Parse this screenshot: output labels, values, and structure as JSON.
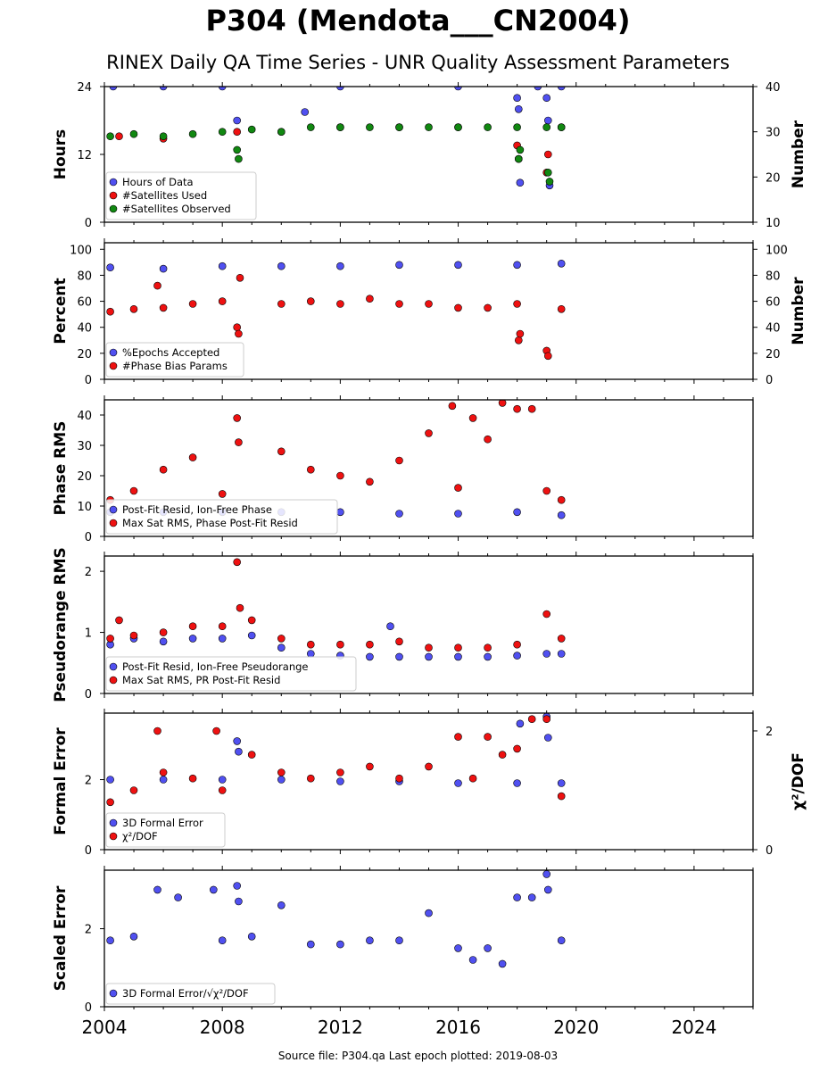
{
  "title": "P304 (Mendota___CN2004)",
  "subtitle": "RINEX Daily QA Time Series - UNR Quality Assessment Parameters",
  "source": "Source file: P304.qa Last epoch plotted: 2019-08-03",
  "colors": {
    "blue": "#5050f0",
    "red": "#ee1111",
    "green": "#118811"
  },
  "chart_data": [
    {
      "type": "scatter",
      "ylabel": "Hours",
      "y2label": "Number",
      "ylim": [
        0,
        24
      ],
      "yticks": [
        0,
        12,
        24
      ],
      "y2lim": [
        10,
        40
      ],
      "y2ticks": [
        10,
        20,
        30,
        40
      ],
      "xlim": [
        2004.0,
        2026.0
      ],
      "xticks": [
        2004,
        2008,
        2012,
        2016,
        2020,
        2024
      ],
      "legend": "lower-left",
      "series": [
        {
          "name": "Hours of Data",
          "color": "blue",
          "axis": "left",
          "x": [
            2004.3,
            2006,
            2008,
            2008.5,
            2010.8,
            2012,
            2016,
            2018,
            2018.05,
            2018.1,
            2018.7,
            2019,
            2019.05,
            2019.1,
            2019.5
          ],
          "y": [
            24,
            24,
            24,
            18,
            19.5,
            24,
            24,
            22,
            20,
            7,
            24,
            22,
            18,
            6.5,
            24
          ]
        },
        {
          "name": "#Satellites Used",
          "color": "red",
          "axis": "right",
          "x": [
            2004.5,
            2006,
            2008.5,
            2010,
            2012,
            2014,
            2016,
            2018,
            2018.05,
            2019,
            2019.05,
            2019.5
          ],
          "y": [
            29,
            28.5,
            30,
            30,
            31,
            31,
            31,
            27,
            24,
            21,
            25,
            31
          ]
        },
        {
          "name": "#Satellites Observed",
          "color": "green",
          "axis": "right",
          "x": [
            2004.2,
            2005,
            2006,
            2007,
            2008,
            2008.5,
            2008.55,
            2009,
            2010,
            2011,
            2012,
            2013,
            2014,
            2015,
            2016,
            2017,
            2018,
            2018.05,
            2018.1,
            2019,
            2019.05,
            2019.1,
            2019.5
          ],
          "y": [
            29,
            29.5,
            29,
            29.5,
            30,
            26,
            24,
            30.5,
            30,
            31,
            31,
            31,
            31,
            31,
            31,
            31,
            31,
            24,
            26,
            31,
            21,
            19,
            31
          ]
        }
      ]
    },
    {
      "type": "scatter",
      "ylabel": "Percent",
      "y2label": "Number",
      "ylim": [
        0,
        105
      ],
      "yticks": [
        0,
        20,
        40,
        60,
        80,
        100
      ],
      "y2lim": [
        0,
        105
      ],
      "y2ticks": [
        0,
        20,
        40,
        60,
        80,
        100
      ],
      "xlim": [
        2004.0,
        2026.0
      ],
      "xticks": [
        2004,
        2008,
        2012,
        2016,
        2020,
        2024
      ],
      "legend": "lower-left",
      "series": [
        {
          "name": "%Epochs Accepted",
          "color": "blue",
          "axis": "left",
          "x": [
            2004.2,
            2006,
            2008,
            2010,
            2012,
            2014,
            2016,
            2018,
            2019.5
          ],
          "y": [
            86,
            85,
            87,
            87,
            87,
            88,
            88,
            88,
            89
          ]
        },
        {
          "name": "#Phase Bias Params",
          "color": "red",
          "axis": "right",
          "x": [
            2004.2,
            2005,
            2005.8,
            2006,
            2007,
            2008,
            2008.5,
            2008.55,
            2008.6,
            2010,
            2011,
            2012,
            2013,
            2014,
            2015,
            2016,
            2017,
            2018,
            2018.05,
            2018.1,
            2019,
            2019.05,
            2019.5
          ],
          "y": [
            52,
            54,
            72,
            55,
            58,
            60,
            40,
            35,
            78,
            58,
            60,
            58,
            62,
            58,
            58,
            55,
            55,
            58,
            30,
            35,
            22,
            18,
            54
          ]
        }
      ]
    },
    {
      "type": "scatter",
      "ylabel": "Phase RMS",
      "ylim": [
        0,
        45
      ],
      "yticks": [
        0,
        10,
        20,
        30,
        40
      ],
      "xlim": [
        2004.0,
        2026.0
      ],
      "xticks": [
        2004,
        2008,
        2012,
        2016,
        2020,
        2024
      ],
      "legend": "lower-left",
      "series": [
        {
          "name": "Post-Fit Resid, Ion-Free Phase",
          "color": "blue",
          "axis": "left",
          "x": [
            2004.2,
            2006,
            2008,
            2010,
            2012,
            2014,
            2016,
            2018,
            2019.5
          ],
          "y": [
            8,
            8,
            8,
            8,
            8,
            7.5,
            7.5,
            8,
            7
          ]
        },
        {
          "name": "Max Sat RMS, Phase Post-Fit Resid",
          "color": "red",
          "axis": "left",
          "x": [
            2004.2,
            2005,
            2006,
            2007,
            2008,
            2008.5,
            2008.55,
            2010,
            2011,
            2012,
            2013,
            2014,
            2015,
            2015.8,
            2016,
            2016.5,
            2017,
            2017.5,
            2018,
            2018.5,
            2019,
            2019.5
          ],
          "y": [
            12,
            15,
            22,
            26,
            14,
            39,
            31,
            28,
            22,
            20,
            18,
            25,
            34,
            43,
            16,
            39,
            32,
            44,
            42,
            42,
            15,
            12
          ]
        }
      ]
    },
    {
      "type": "scatter",
      "ylabel": "Pseudorange RMS",
      "ylim": [
        0,
        2.25
      ],
      "yticks": [
        0,
        1,
        2
      ],
      "xlim": [
        2004.0,
        2026.0
      ],
      "xticks": [
        2004,
        2008,
        2012,
        2016,
        2020,
        2024
      ],
      "legend": "lower-left",
      "series": [
        {
          "name": "Post-Fit Resid, Ion-Free Pseudorange",
          "color": "blue",
          "axis": "left",
          "x": [
            2004.2,
            2005,
            2006,
            2007,
            2008,
            2009,
            2010,
            2011,
            2012,
            2013,
            2013.7,
            2014,
            2015,
            2016,
            2017,
            2018,
            2019,
            2019.5
          ],
          "y": [
            0.8,
            0.9,
            0.85,
            0.9,
            0.9,
            0.95,
            0.75,
            0.65,
            0.62,
            0.6,
            1.1,
            0.6,
            0.6,
            0.6,
            0.6,
            0.62,
            0.65,
            0.65
          ]
        },
        {
          "name": "Max Sat RMS, PR Post-Fit Resid",
          "color": "red",
          "axis": "left",
          "x": [
            2004.2,
            2004.5,
            2005,
            2006,
            2007,
            2008,
            2008.5,
            2008.6,
            2009,
            2010,
            2011,
            2012,
            2013,
            2014,
            2015,
            2016,
            2017,
            2018,
            2019,
            2019.5
          ],
          "y": [
            0.9,
            1.2,
            0.95,
            1.0,
            1.1,
            1.1,
            2.15,
            1.4,
            1.2,
            0.9,
            0.8,
            0.8,
            0.8,
            0.85,
            0.75,
            0.75,
            0.75,
            0.8,
            1.3,
            0.9
          ]
        }
      ]
    },
    {
      "type": "scatter",
      "ylabel": "Formal Error",
      "y2label": "χ²/DOF",
      "ylim": [
        0,
        3.9
      ],
      "yticks": [
        0,
        2
      ],
      "y2lim": [
        0,
        2.3
      ],
      "y2ticks": [
        0,
        2
      ],
      "xlim": [
        2004.0,
        2026.0
      ],
      "xticks": [
        2004,
        2008,
        2012,
        2016,
        2020,
        2024
      ],
      "legend": "lower-left",
      "series": [
        {
          "name": "3D Formal Error",
          "color": "blue",
          "axis": "left",
          "x": [
            2004.2,
            2006,
            2008,
            2008.5,
            2008.55,
            2010,
            2012,
            2014,
            2016,
            2018,
            2018.1,
            2019,
            2019.05,
            2019.5
          ],
          "y": [
            2.0,
            2.0,
            2.0,
            3.1,
            2.8,
            2.0,
            1.95,
            1.95,
            1.9,
            1.9,
            3.6,
            3.8,
            3.2,
            1.9
          ]
        },
        {
          "name": "χ²/DOF",
          "color": "red",
          "axis": "right",
          "x": [
            2004.2,
            2005,
            2005.8,
            2006,
            2007,
            2007.8,
            2008,
            2009,
            2010,
            2011,
            2012,
            2013,
            2014,
            2015,
            2016,
            2016.5,
            2017,
            2017.5,
            2018,
            2018.5,
            2019,
            2019.5
          ],
          "y": [
            0.8,
            1.0,
            2.0,
            1.3,
            1.2,
            2.0,
            1.0,
            1.6,
            1.3,
            1.2,
            1.3,
            1.4,
            1.2,
            1.4,
            1.9,
            1.2,
            1.9,
            1.6,
            1.7,
            2.2,
            2.2,
            0.9
          ]
        }
      ]
    },
    {
      "type": "scatter",
      "ylabel": "Scaled Error",
      "ylim": [
        0,
        3.5
      ],
      "yticks": [
        0,
        2
      ],
      "xlim": [
        2004.0,
        2026.0
      ],
      "xticks": [
        2004,
        2008,
        2012,
        2016,
        2020,
        2024
      ],
      "legend": "lower-left",
      "series": [
        {
          "name": "3D Formal Error/√χ²/DOF",
          "color": "blue",
          "axis": "left",
          "x": [
            2004.2,
            2005,
            2005.8,
            2006.5,
            2007.7,
            2008,
            2008.5,
            2008.55,
            2009,
            2010,
            2011,
            2012,
            2013,
            2014,
            2015,
            2016,
            2016.5,
            2017,
            2017.5,
            2018,
            2018.5,
            2019,
            2019.05,
            2019.5
          ],
          "y": [
            1.7,
            1.8,
            3.0,
            2.8,
            3.0,
            1.7,
            3.1,
            2.7,
            1.8,
            2.6,
            1.6,
            1.6,
            1.7,
            1.7,
            2.4,
            1.5,
            1.2,
            1.5,
            1.1,
            2.8,
            2.8,
            3.4,
            3.0,
            1.7
          ]
        }
      ]
    }
  ]
}
